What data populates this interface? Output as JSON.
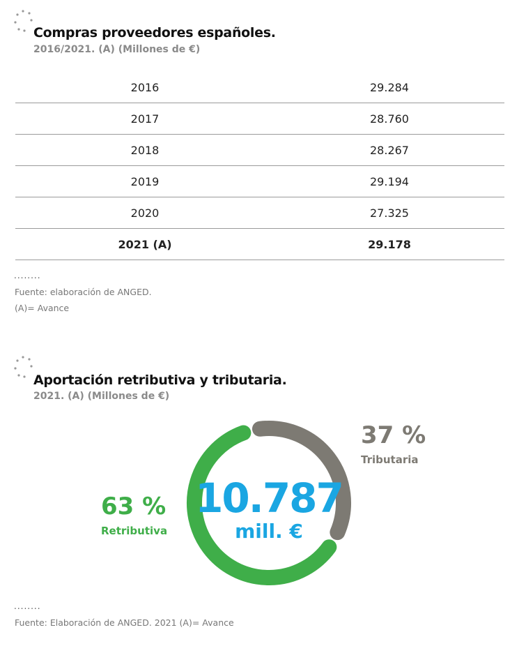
{
  "section1": {
    "title": "Compras proveedores españoles.",
    "subtitle": "2016/2021. (A) (Millones de €)",
    "rows": [
      {
        "year": "2016",
        "value": "29.284"
      },
      {
        "year": "2017",
        "value": "28.760"
      },
      {
        "year": "2018",
        "value": "28.267"
      },
      {
        "year": "2019",
        "value": "29.194"
      },
      {
        "year": "2020",
        "value": "27.325"
      },
      {
        "year": "2021 (A)",
        "value": "29.178"
      }
    ],
    "note_dots": "........",
    "source": "Fuente: elaboración de ANGED.",
    "note": "(A)= Avance"
  },
  "section2": {
    "title": "Aportación retributiva y tributaria.",
    "subtitle": "2021. (A) (Millones de €)",
    "note_dots": "........",
    "source": "Fuente: Elaboración de ANGED. 2021 (A)= Avance"
  },
  "chart_data": {
    "type": "pie",
    "variant": "donut",
    "center_value": "10.787",
    "center_unit": "mill. €",
    "series": [
      {
        "name": "Tributaria",
        "value": 37,
        "label": "37 %",
        "color": "#7d7a73"
      },
      {
        "name": "Retributiva",
        "value": 63,
        "label": "63 %",
        "color": "#3fae49"
      }
    ],
    "center_color": "#1aa6e2"
  }
}
